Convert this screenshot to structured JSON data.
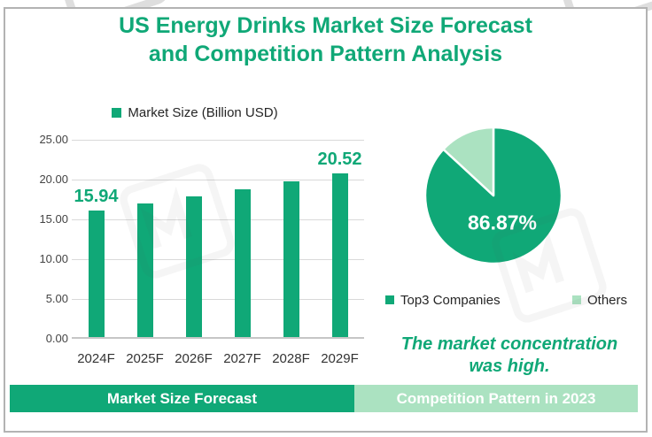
{
  "header": {
    "line1": "US Energy Drinks Market Size Forecast",
    "line2": "and Competition Pattern Analysis"
  },
  "caption": "The market concentration was high.",
  "footer": {
    "left_label": "Market Size Forecast",
    "right_label": "Competition Pattern in 2023"
  },
  "colors": {
    "primary_green": "#10a877",
    "light_green": "#abe2c1",
    "grid_line": "#d9d9d9",
    "axis_line": "#c6c6c6",
    "text_dark": "#262626",
    "axis_text": "#444444",
    "frame_border": "#b3b3b3",
    "pie_label_text": "#ffffff",
    "banner_text": "#ffffff"
  },
  "chart_data": [
    {
      "type": "bar",
      "title": "US Energy Drinks Market Size Forecast and Competition Pattern Analysis",
      "legend": "Market Size (Billion USD)",
      "categories": [
        "2024F",
        "2025F",
        "2026F",
        "2027F",
        "2028F",
        "2029F"
      ],
      "values": [
        15.94,
        16.77,
        17.63,
        18.54,
        19.51,
        20.52
      ],
      "value_labels": [
        {
          "index": 0,
          "text": "15.94"
        },
        {
          "index": 5,
          "text": "20.52"
        }
      ],
      "xlabel": "",
      "ylabel": "",
      "ylim": [
        0,
        25
      ],
      "ytick_step": 5,
      "ytick_labels": [
        "0.00",
        "5.00",
        "10.00",
        "15.00",
        "20.00",
        "25.00"
      ],
      "grid": true,
      "bar_color": "#10a877",
      "legend_position": "top"
    },
    {
      "type": "pie",
      "labels": [
        "Top3 Companies",
        "Others"
      ],
      "values": [
        86.87,
        13.13
      ],
      "colors": [
        "#10a877",
        "#abe2c1"
      ],
      "data_label": "86.87%",
      "legend_position": "bottom",
      "start_angle_deg": 0,
      "direction": "clockwise"
    }
  ]
}
